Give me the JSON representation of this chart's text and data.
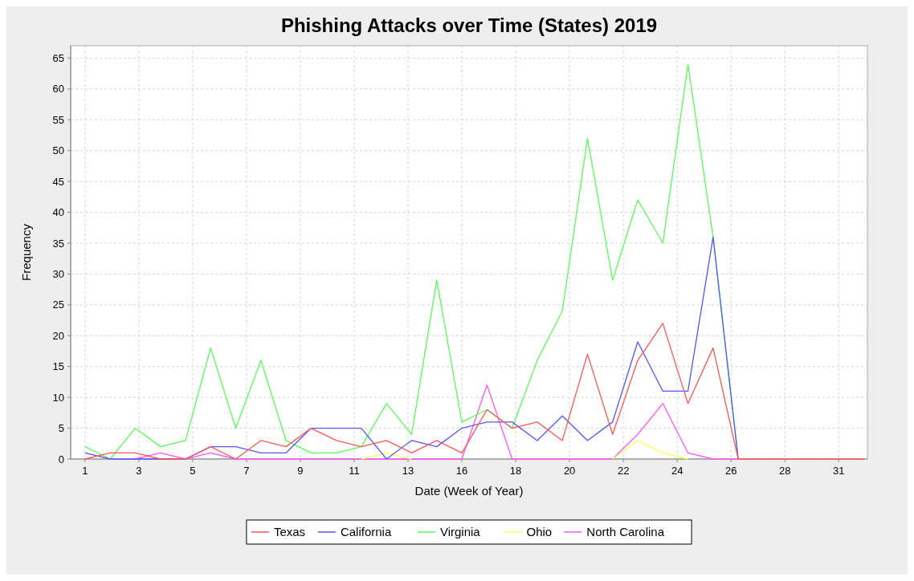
{
  "chart_data": {
    "type": "line",
    "title": "Phishing Attacks over Time (States) 2019",
    "xlabel": "Date (Week of Year)",
    "ylabel": "Frequency",
    "x": [
      "2019-01-01",
      "2019-01-08",
      "2019-01-15",
      "2019-01-22",
      "2019-01-29",
      "2019-02-05",
      "2019-02-12",
      "2019-02-19",
      "2019-02-26",
      "2019-03-05",
      "2019-03-12",
      "2019-03-19",
      "2019-03-26",
      "2019-04-02",
      "2019-04-09",
      "2019-04-16",
      "2019-04-23",
      "2019-04-30",
      "2019-05-07",
      "2019-05-14",
      "2019-05-21",
      "2019-05-28",
      "2019-06-04",
      "2019-06-11",
      "2019-06-18",
      "2019-06-25",
      "2019-07-02",
      "2019-07-09",
      "2019-07-16",
      "2019-07-23",
      "2019-07-30",
      "2019-08-06"
    ],
    "xlim": [
      "2018-12-28",
      "2019-08-07"
    ],
    "xticks": [
      {
        "value": "2019-01-01",
        "label": "1"
      },
      {
        "value": "2019-01-16",
        "label": "3"
      },
      {
        "value": "2019-01-31",
        "label": "5"
      },
      {
        "value": "2019-02-15",
        "label": "7"
      },
      {
        "value": "2019-03-02",
        "label": "9"
      },
      {
        "value": "2019-03-17",
        "label": "11"
      },
      {
        "value": "2019-04-01",
        "label": "13"
      },
      {
        "value": "2019-04-16",
        "label": "16"
      },
      {
        "value": "2019-05-01",
        "label": "18"
      },
      {
        "value": "2019-05-16",
        "label": "20"
      },
      {
        "value": "2019-05-31",
        "label": "22"
      },
      {
        "value": "2019-06-15",
        "label": "24"
      },
      {
        "value": "2019-06-30",
        "label": "26"
      },
      {
        "value": "2019-07-15",
        "label": "28"
      },
      {
        "value": "2019-07-30",
        "label": "31"
      }
    ],
    "ylim": [
      0,
      67
    ],
    "yticks": [
      0,
      5,
      10,
      15,
      20,
      25,
      30,
      35,
      40,
      45,
      50,
      55,
      60,
      65
    ],
    "grid": true,
    "legend": "bottom",
    "series": [
      {
        "name": "Texas",
        "color": "#ff5555",
        "values": [
          0,
          1,
          1,
          0,
          0,
          2,
          0,
          3,
          2,
          5,
          3,
          2,
          3,
          1,
          3,
          1,
          8,
          5,
          6,
          3,
          17,
          4,
          16,
          22,
          9,
          18,
          0,
          0,
          0,
          0,
          0,
          0
        ]
      },
      {
        "name": "California",
        "color": "#5555ff",
        "values": [
          1,
          0,
          0,
          0,
          0,
          2,
          2,
          1,
          1,
          5,
          5,
          5,
          0,
          3,
          2,
          5,
          6,
          6,
          3,
          7,
          3,
          6,
          19,
          11,
          11,
          36,
          0,
          null,
          null,
          null,
          null,
          null
        ]
      },
      {
        "name": "Virginia",
        "color": "#55ff55",
        "values": [
          2,
          0,
          5,
          2,
          3,
          18,
          5,
          16,
          3,
          1,
          1,
          2,
          9,
          4,
          29,
          6,
          8,
          5,
          16,
          24,
          52,
          29,
          42,
          35,
          64,
          36,
          0,
          null,
          null,
          null,
          null,
          null
        ]
      },
      {
        "name": "Ohio",
        "color": "#ffff55",
        "values": [
          null,
          null,
          null,
          null,
          null,
          null,
          null,
          null,
          null,
          null,
          null,
          0,
          1,
          0,
          null,
          null,
          null,
          null,
          null,
          null,
          null,
          0,
          3,
          1,
          0,
          null,
          null,
          null,
          null,
          null,
          null,
          null
        ]
      },
      {
        "name": "North Carolina",
        "color": "#ff55ff",
        "values": [
          null,
          null,
          0,
          1,
          0,
          1,
          0,
          0,
          0,
          0,
          0,
          0,
          0,
          0,
          0,
          0,
          12,
          0,
          0,
          0,
          0,
          0,
          4,
          9,
          1,
          0,
          0,
          null,
          null,
          null,
          null,
          null
        ]
      }
    ]
  }
}
